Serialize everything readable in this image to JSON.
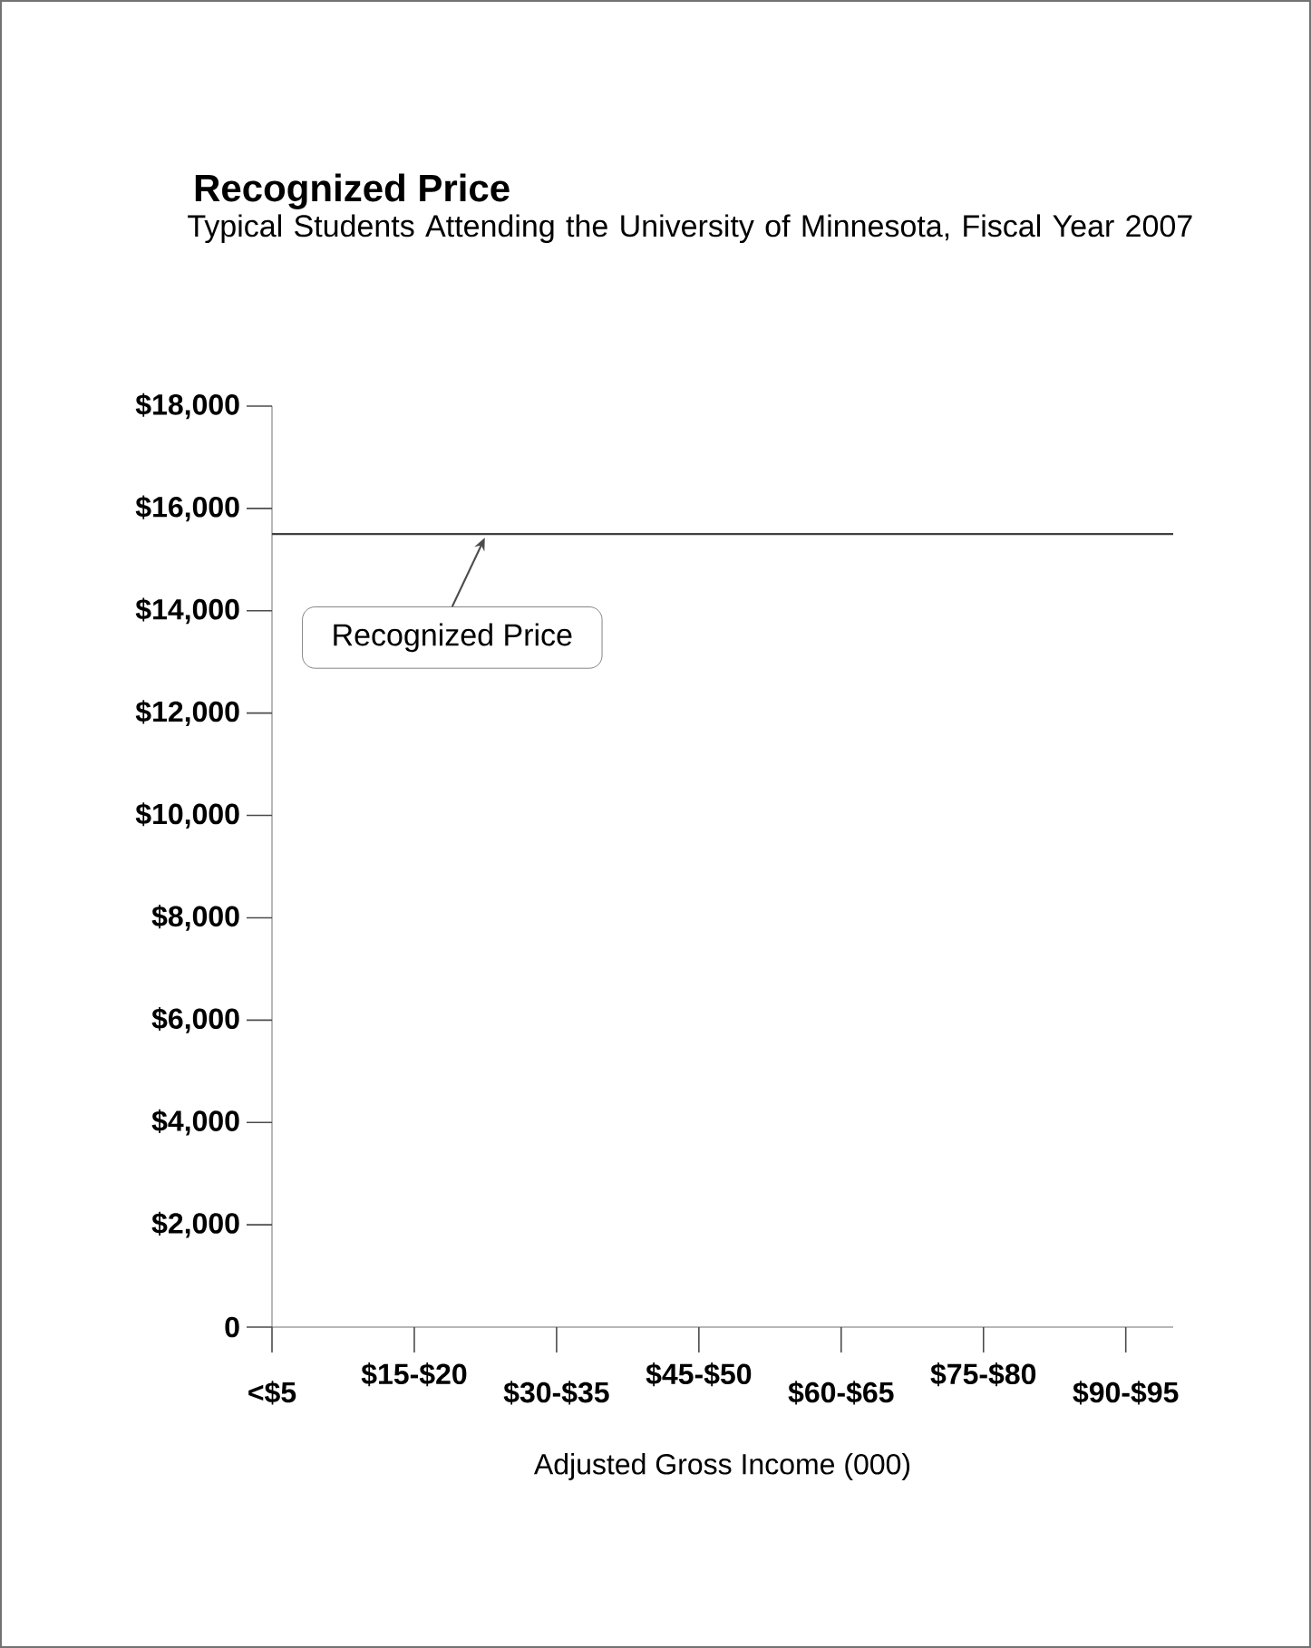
{
  "chart_data": {
    "type": "line",
    "title": "Recognized Price",
    "subtitle": "Typical Students Attending the University of Minnesota, Fiscal Year 2007",
    "xlabel": "Adjusted Gross Income (000)",
    "categories": [
      "<$5",
      null,
      null,
      "$15-$20",
      null,
      null,
      "$30-$35",
      null,
      null,
      "$45-$50",
      null,
      null,
      "$60-$65",
      null,
      null,
      "$75-$80",
      null,
      null,
      "$90-$95",
      null
    ],
    "series": [
      {
        "color": "#404040",
        "values": [
          15500,
          15500,
          15500,
          15500,
          15500,
          15500,
          15500,
          15500,
          15500,
          15500,
          15500,
          15500,
          15500,
          15500,
          15500,
          15500,
          15500,
          15500,
          15500,
          15500
        ]
      }
    ],
    "ylim": [
      0,
      18000
    ],
    "yticks": [
      0,
      {
        "value": 2000,
        "label": "$2,000"
      },
      {
        "value": 4000,
        "label": "$4,000"
      },
      {
        "value": 6000,
        "label": "$6,000"
      },
      {
        "value": 8000,
        "label": "$8,000"
      },
      {
        "value": 10000,
        "label": "$10,000"
      },
      {
        "value": 12000,
        "label": "$12,000"
      },
      {
        "value": 14000,
        "label": "$14,000"
      },
      {
        "value": 16000,
        "label": "$16,000"
      },
      {
        "value": 18000,
        "label": "$18,000"
      }
    ],
    "annotations": [
      {
        "text": "Recognized Price",
        "y": 15500
      }
    ]
  }
}
